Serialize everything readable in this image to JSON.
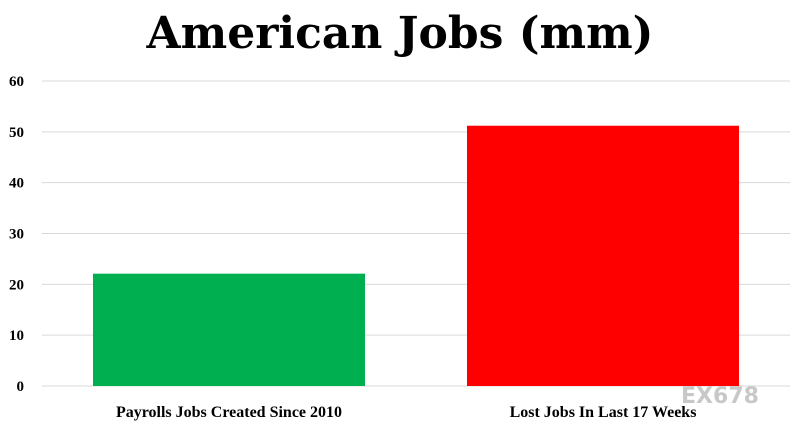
{
  "chart_data": {
    "type": "bar",
    "title": "American Jobs (mm)",
    "categories": [
      "Payrolls Jobs Created Since 2010",
      "Lost Jobs In Last 17 Weeks"
    ],
    "values": [
      22.1,
      51.2
    ],
    "colors": [
      "#00b050",
      "#ff0000"
    ],
    "ylim": [
      0,
      60
    ],
    "yticks": [
      0,
      10,
      20,
      30,
      40,
      50,
      60
    ],
    "grid": true,
    "xlabel": "",
    "ylabel": ""
  },
  "watermark": "EX678",
  "colors": {
    "grid": "#d9d9d9",
    "text": "#000000",
    "watermark": "#c8c8c8"
  }
}
